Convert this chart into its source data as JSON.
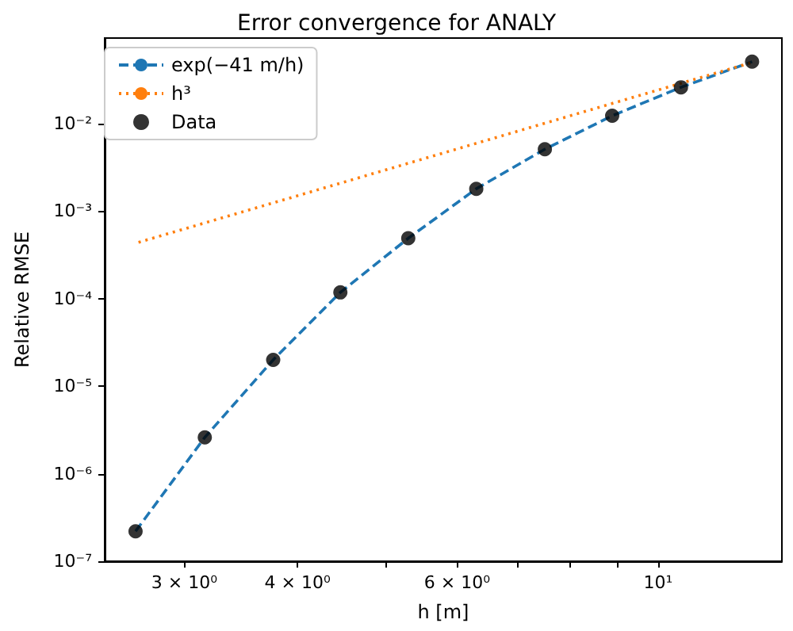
{
  "chart_data": {
    "type": "line",
    "title": "Error convergence for ANALY",
    "xlabel": "h [m]",
    "ylabel": "Relative RMSE",
    "log": "xy",
    "grid": false,
    "legend": "top left",
    "xlim": [
      2.45,
      13.7
    ],
    "ylim": [
      1e-07,
      0.095
    ],
    "xticks": [
      {
        "value": 3,
        "label": "3 × 10⁰"
      },
      {
        "value": 4,
        "label": "4 × 10⁰"
      },
      {
        "value": 5,
        "label": null
      },
      {
        "value": 6,
        "label": "6 × 10⁰"
      },
      {
        "value": 7,
        "label": null
      },
      {
        "value": 8,
        "label": null
      },
      {
        "value": 9,
        "label": null
      },
      {
        "value": 10,
        "label": "10¹"
      }
    ],
    "yticks": [
      {
        "value": 1e-07,
        "label": "10⁻⁷"
      },
      {
        "value": 1e-06,
        "label": "10⁻⁶"
      },
      {
        "value": 1e-05,
        "label": "10⁻⁵"
      },
      {
        "value": 0.0001,
        "label": "10⁻⁴"
      },
      {
        "value": 0.001,
        "label": "10⁻³"
      },
      {
        "value": 0.01,
        "label": "10⁻²"
      }
    ],
    "series": [
      {
        "name": "exp(−41 m/h)",
        "color": "#1f77b4",
        "line_style": "dashed",
        "marker": "none",
        "x": [
          2.65,
          3.16,
          3.76,
          4.46,
          5.3,
          6.3,
          7.5,
          8.9,
          10.6,
          12.7
        ],
        "values": [
          2.2e-07,
          2.6e-06,
          2e-05,
          0.000118,
          0.00049,
          0.0018,
          0.0051,
          0.0123,
          0.026,
          0.051
        ]
      },
      {
        "name": "h³",
        "color": "#ff7f0e",
        "line_style": "dotted",
        "marker": "none",
        "x": [
          2.67,
          12.7
        ],
        "values": [
          0.00044,
          0.05
        ]
      },
      {
        "name": "Data",
        "type": "scatter",
        "color": "#000000",
        "marker": "circle",
        "x": [
          2.65,
          3.16,
          3.76,
          4.46,
          5.3,
          6.3,
          7.5,
          8.9,
          10.6,
          12.7
        ],
        "values": [
          2.2e-07,
          2.6e-06,
          2e-05,
          0.000118,
          0.00049,
          0.0018,
          0.0051,
          0.0123,
          0.026,
          0.051
        ]
      }
    ]
  }
}
